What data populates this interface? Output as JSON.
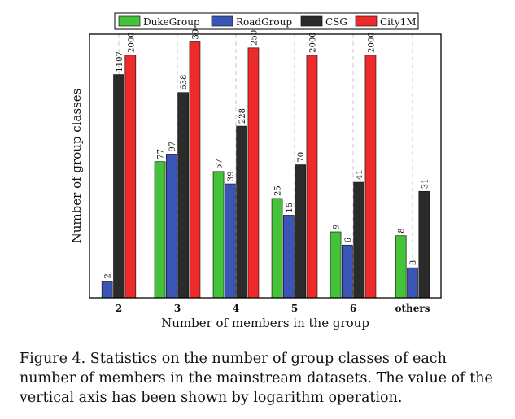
{
  "chart_data": {
    "type": "bar",
    "xlabel": "Number of members in the group",
    "ylabel": "Number of group classes",
    "yscale": "log",
    "categories": [
      "2",
      "3",
      "4",
      "5",
      "6",
      "others"
    ],
    "series": [
      {
        "name": "DukeGroup",
        "color": "#44c23a",
        "values": [
          null,
          77,
          57,
          25,
          9,
          8
        ]
      },
      {
        "name": "RoadGroup",
        "color": "#3a55b5",
        "values": [
          2,
          97,
          39,
          15,
          6,
          3
        ]
      },
      {
        "name": "CSG",
        "color": "#2b2b2b",
        "values": [
          1107,
          638,
          228,
          70,
          41,
          31
        ]
      },
      {
        "name": "City1M",
        "color": "#ee2a2a",
        "values": [
          2000,
          3000,
          2500,
          2000,
          2000,
          null
        ]
      }
    ],
    "legend": "top-center",
    "grid": "vertical dashed lines at categories"
  },
  "caption": "Figure 4. Statistics on the number of group classes of each number of members in the mainstream datasets. The value of the vertical axis has been shown by logarithm operation."
}
